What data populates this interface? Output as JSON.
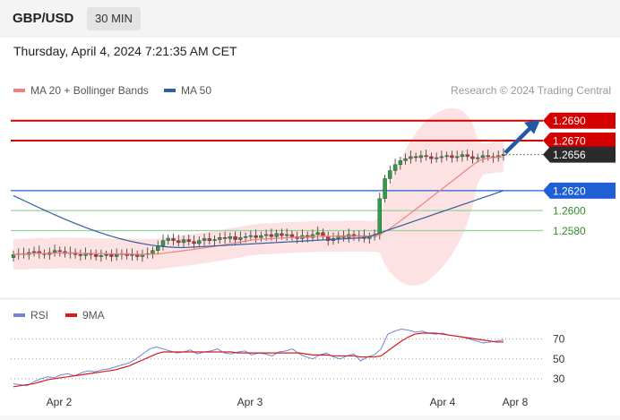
{
  "header": {
    "pair": "GBP/USD",
    "interval": "30 MIN",
    "datetime": "Thursday, April 4, 2024 7:21:35 AM CET"
  },
  "legend": {
    "ma20": "MA 20 + Bollinger Bands",
    "ma50": "MA 50",
    "ma20_color": "#f08080",
    "ma50_color": "#2f5f9f",
    "credit": "Research © 2024 Trading Central"
  },
  "rsi_legend": {
    "rsi": "RSI",
    "ma9": "9MA",
    "rsi_color": "#6b86d6",
    "ma9_color": "#d81b1b"
  },
  "chart_data": [
    {
      "type": "candlestick",
      "ylim": [
        1.2515,
        1.2705
      ],
      "x_ticks": [
        "Apr 2",
        "Apr 3",
        "Apr 4",
        "Apr 8"
      ],
      "price_levels": [
        {
          "value": 1.269,
          "label": "1.2690",
          "kind": "resistance",
          "color": "#d40000"
        },
        {
          "value": 1.267,
          "label": "1.2670",
          "kind": "resistance",
          "color": "#d40000"
        },
        {
          "value": 1.2656,
          "label": "1.2656",
          "kind": "last-price",
          "color": "#2b2b2b"
        },
        {
          "value": 1.262,
          "label": "1.2620",
          "kind": "pivot",
          "color": "#1f5fd6"
        },
        {
          "value": 1.26,
          "label": "1.2600",
          "kind": "support",
          "color": "#2e8b2e"
        },
        {
          "value": 1.258,
          "label": "1.2580",
          "kind": "support",
          "color": "#2e8b2e"
        }
      ],
      "close_series": [
        1.2556,
        1.2557,
        1.2556,
        1.2558,
        1.2559,
        1.2557,
        1.2556,
        1.2558,
        1.256,
        1.2559,
        1.2557,
        1.2558,
        1.2556,
        1.2555,
        1.2557,
        1.2556,
        1.2554,
        1.2555,
        1.2556,
        1.2554,
        1.2556,
        1.2557,
        1.2555,
        1.2556,
        1.2554,
        1.2556,
        1.2557,
        1.256,
        1.2565,
        1.257,
        1.2572,
        1.257,
        1.2568,
        1.2571,
        1.2569,
        1.2567,
        1.257,
        1.2572,
        1.257,
        1.2571,
        1.2573,
        1.2572,
        1.2574,
        1.2571,
        1.2573,
        1.2574,
        1.2575,
        1.2573,
        1.2575,
        1.2576,
        1.2574,
        1.2577,
        1.2575,
        1.2576,
        1.2574,
        1.2572,
        1.2575,
        1.2573,
        1.2576,
        1.2578,
        1.2574,
        1.257,
        1.2572,
        1.2575,
        1.2573,
        1.2576,
        1.2574,
        1.2575,
        1.2572,
        1.2574,
        1.2576,
        1.2612,
        1.2632,
        1.264,
        1.2646,
        1.265,
        1.2652,
        1.2654,
        1.2653,
        1.2655,
        1.2654,
        1.2652,
        1.2653,
        1.2654,
        1.2655,
        1.2653,
        1.2654,
        1.2656,
        1.2654,
        1.2652,
        1.2653,
        1.2655,
        1.2654,
        1.2653,
        1.2655,
        1.2656
      ],
      "ma50_endpoints": {
        "start": 1.2615,
        "min": 1.2563,
        "end": 1.262
      },
      "annotation": "arrow-up"
    },
    {
      "type": "line",
      "name": "RSI",
      "ylim": [
        20,
        85
      ],
      "y_ticks": [
        70,
        50,
        30
      ],
      "rsi": [
        25,
        24,
        23,
        27,
        30,
        32,
        31,
        34,
        35,
        33,
        36,
        38,
        37,
        39,
        40,
        42,
        44,
        46,
        50,
        55,
        60,
        62,
        60,
        58,
        56,
        57,
        59,
        55,
        57,
        58,
        60,
        56,
        55,
        57,
        58,
        54,
        56,
        55,
        53,
        57,
        58,
        60,
        55,
        52,
        50,
        54,
        56,
        52,
        50,
        53,
        55,
        48,
        52,
        54,
        60,
        75,
        78,
        80,
        79,
        77,
        78,
        76,
        75,
        76,
        74,
        73,
        72,
        70,
        68,
        66,
        67,
        68,
        69
      ],
      "ma9": [
        22,
        23,
        24,
        25,
        27,
        29,
        30,
        31,
        32,
        33,
        34,
        35,
        36,
        37,
        38,
        39,
        41,
        43,
        46,
        49,
        52,
        55,
        57,
        57,
        57,
        57,
        57,
        57,
        57,
        57,
        57,
        57,
        57,
        56,
        56,
        56,
        56,
        56,
        56,
        56,
        56,
        56,
        56,
        55,
        54,
        54,
        54,
        53,
        53,
        53,
        53,
        52,
        52,
        52,
        53,
        58,
        63,
        68,
        72,
        75,
        76,
        76,
        76,
        75,
        74,
        73,
        72,
        71,
        70,
        69,
        68,
        67,
        67
      ]
    }
  ]
}
